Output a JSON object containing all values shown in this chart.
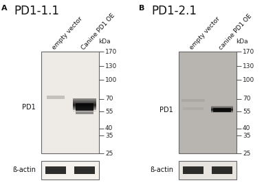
{
  "panel_A_title": "PD1-1.1",
  "panel_B_title": "PD1-2.1",
  "panel_A_label": "A",
  "panel_B_label": "B",
  "lane_labels": [
    "empty vector",
    "Canine PD1 OE"
  ],
  "lane_labels_B": [
    "empty vector",
    "canine PD1 OE"
  ],
  "mw_markers": [
    170,
    130,
    100,
    70,
    55,
    40,
    35,
    25
  ],
  "pd1_label": "PD1",
  "actin_label": "ß-actin",
  "bg_color": "#ffffff",
  "blot_A_bg": "#eeebe6",
  "blot_B_bg": "#b8b4af",
  "actin_bg": "#f5f2ee",
  "actin_bg_B": "#e8e4e0",
  "title_fontsize": 12,
  "label_fontsize": 6.5,
  "tick_fontsize": 6.5
}
